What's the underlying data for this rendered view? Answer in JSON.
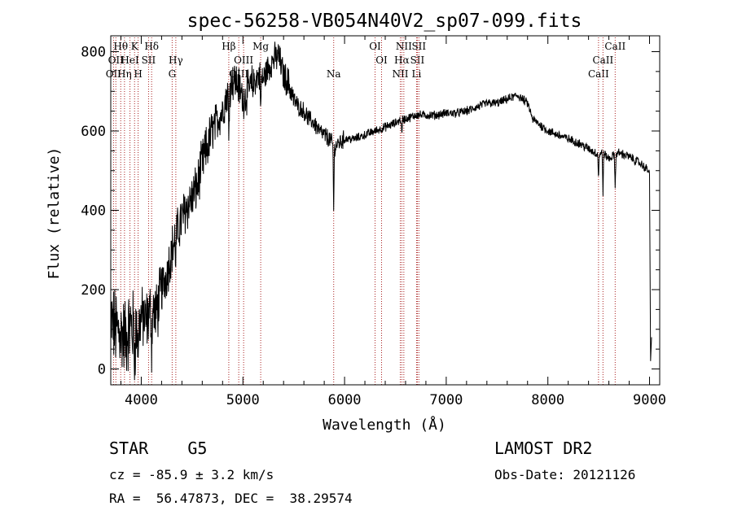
{
  "chart_data": {
    "type": "line",
    "title": "spec-56258-VB054N40V2_sp07-099.fits",
    "xlabel": "Wavelength (Å)",
    "ylabel": "Flux (relative)",
    "xlim": [
      3700,
      9100
    ],
    "ylim": [
      -40,
      840
    ],
    "xticks": [
      4000,
      5000,
      6000,
      7000,
      8000,
      9000
    ],
    "yticks": [
      0,
      200,
      400,
      600,
      800
    ],
    "x_minor_step": 200,
    "y_minor_step": 50,
    "grid": false,
    "spectrum": {
      "x": [
        3700,
        3750,
        3800,
        3850,
        3900,
        3950,
        4000,
        4050,
        4100,
        4150,
        4200,
        4250,
        4300,
        4350,
        4400,
        4450,
        4500,
        4550,
        4600,
        4650,
        4700,
        4750,
        4800,
        4850,
        4900,
        4950,
        5000,
        5050,
        5100,
        5150,
        5200,
        5250,
        5300,
        5350,
        5400,
        5450,
        5500,
        5550,
        5600,
        5650,
        5700,
        5750,
        5800,
        5850,
        5900,
        5950,
        6000,
        6100,
        6200,
        6300,
        6400,
        6500,
        6560,
        6600,
        6700,
        6800,
        6900,
        7000,
        7100,
        7200,
        7300,
        7400,
        7500,
        7600,
        7700,
        7800,
        7850,
        7900,
        8000,
        8100,
        8200,
        8300,
        8400,
        8500,
        8540,
        8600,
        8660,
        8700,
        8800,
        8900,
        8990,
        9000
      ],
      "y": [
        120,
        100,
        90,
        80,
        110,
        90,
        130,
        120,
        150,
        140,
        200,
        240,
        300,
        340,
        380,
        410,
        430,
        460,
        520,
        560,
        600,
        630,
        650,
        700,
        730,
        720,
        680,
        700,
        720,
        740,
        730,
        760,
        780,
        790,
        740,
        720,
        680,
        660,
        650,
        630,
        620,
        600,
        590,
        580,
        560,
        570,
        580,
        580,
        590,
        600,
        610,
        620,
        630,
        630,
        640,
        640,
        640,
        645,
        645,
        650,
        660,
        670,
        670,
        680,
        690,
        670,
        630,
        620,
        600,
        590,
        580,
        570,
        555,
        540,
        545,
        530,
        540,
        545,
        535,
        520,
        500,
        490
      ],
      "noise_amplitude": 18,
      "noise_scale": [
        [
          3700,
          3950,
          90
        ],
        [
          3950,
          4200,
          70
        ],
        [
          4200,
          4700,
          55
        ],
        [
          4700,
          5100,
          45
        ],
        [
          5100,
          5500,
          35
        ],
        [
          5500,
          6000,
          20
        ],
        [
          6000,
          9000,
          10
        ]
      ],
      "dips": [
        {
          "x": 3934,
          "depth": 70
        },
        {
          "x": 3969,
          "depth": 60
        },
        {
          "x": 4102,
          "depth": 90
        },
        {
          "x": 4340,
          "depth": 60
        },
        {
          "x": 4861,
          "depth": 120
        },
        {
          "x": 5175,
          "depth": 90
        },
        {
          "x": 5893,
          "depth": 160
        },
        {
          "x": 6563,
          "depth": 45
        },
        {
          "x": 8498,
          "depth": 60
        },
        {
          "x": 8542,
          "depth": 100
        },
        {
          "x": 8662,
          "depth": 90
        }
      ],
      "edge_tail": {
        "x": [
          9000,
          9010,
          9020
        ],
        "y": [
          490,
          20,
          80
        ]
      }
    },
    "lines": [
      {
        "x": 3727,
        "label": "OII",
        "row": 2
      },
      {
        "x": 3750,
        "label": "OII",
        "row": 1
      },
      {
        "x": 3798,
        "label": "Hθ",
        "row": 0
      },
      {
        "x": 3835,
        "label": "Hη",
        "row": 2
      },
      {
        "x": 3889,
        "label": "HeI",
        "row": 1
      },
      {
        "x": 3934,
        "label": "K",
        "row": 0
      },
      {
        "x": 3969,
        "label": "H",
        "row": 2
      },
      {
        "x": 4072,
        "label": "SII",
        "row": 1
      },
      {
        "x": 4102,
        "label": "Hδ",
        "row": 0
      },
      {
        "x": 4304,
        "label": "G",
        "row": 2
      },
      {
        "x": 4340,
        "label": "Hγ",
        "row": 1
      },
      {
        "x": 4861,
        "label": "Hβ",
        "row": 0
      },
      {
        "x": 4959,
        "label": "OIII",
        "row": 2
      },
      {
        "x": 5007,
        "label": "OIII",
        "row": 1
      },
      {
        "x": 5175,
        "label": "Mg",
        "row": 0
      },
      {
        "x": 5893,
        "label": "Na",
        "row": 2
      },
      {
        "x": 6300,
        "label": "OI",
        "row": 0
      },
      {
        "x": 6364,
        "label": "OI",
        "row": 1
      },
      {
        "x": 6548,
        "label": "NII",
        "row": 2
      },
      {
        "x": 6563,
        "label": "Hα",
        "row": 1
      },
      {
        "x": 6583,
        "label": "NII",
        "row": 0
      },
      {
        "x": 6708,
        "label": "Li",
        "row": 2
      },
      {
        "x": 6716,
        "label": "SII",
        "row": 1
      },
      {
        "x": 6731,
        "label": "SII",
        "row": 0
      },
      {
        "x": 8498,
        "label": "CaII",
        "row": 2
      },
      {
        "x": 8542,
        "label": "CaII",
        "row": 1
      },
      {
        "x": 8662,
        "label": "CaII",
        "row": 0
      }
    ]
  },
  "info": {
    "object": "STAR    G5",
    "cz": "cz = -85.9 ± 3.2 km/s",
    "coords": "RA =  56.47873, DEC =  38.29574",
    "survey": "LAMOST DR2",
    "obs_date": "Obs-Date: 20121126"
  },
  "colors": {
    "spectrum": "#000000",
    "line_marker": "#aa2222",
    "axes": "#000000",
    "background": "#ffffff"
  }
}
